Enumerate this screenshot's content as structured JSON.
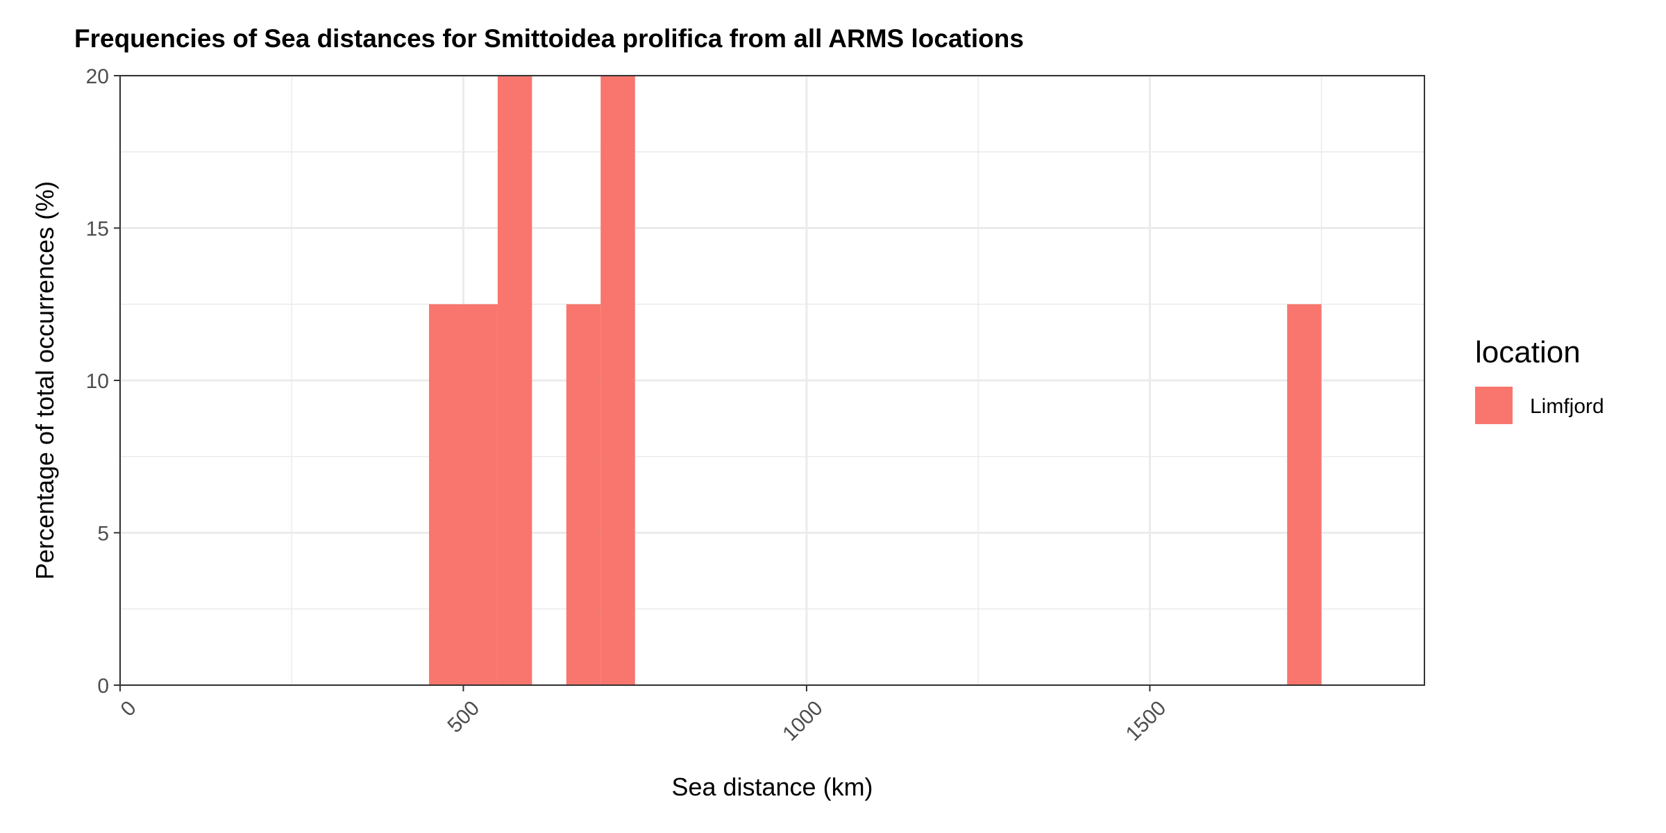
{
  "chart_data": {
    "type": "bar",
    "title": "Frequencies of Sea distances for Smittoidea prolifica from all ARMS locations",
    "xlabel": "Sea distance (km)",
    "ylabel": "Percentage of total occurrences (%)",
    "xlim": [
      0,
      1900
    ],
    "ylim": [
      0,
      20
    ],
    "x_ticks": [
      0,
      500,
      1000,
      1500
    ],
    "x_tick_labels": [
      "0",
      "500",
      "1000",
      "1500"
    ],
    "y_ticks": [
      0,
      5,
      10,
      15,
      20
    ],
    "y_tick_labels": [
      "0",
      "5",
      "10",
      "15",
      "20"
    ],
    "bin_width": 50,
    "grid": true,
    "legend": {
      "title": "location",
      "placement": "right",
      "entries": [
        {
          "label": "Limfjord",
          "color": "#F8766D"
        }
      ]
    },
    "series": [
      {
        "name": "Limfjord",
        "color": "#F8766D",
        "bins": [
          {
            "x_start": 450,
            "x_end": 500,
            "value": 12.5
          },
          {
            "x_start": 500,
            "x_end": 550,
            "value": 12.5
          },
          {
            "x_start": 550,
            "x_end": 600,
            "value": 20
          },
          {
            "x_start": 650,
            "x_end": 700,
            "value": 12.5
          },
          {
            "x_start": 700,
            "x_end": 750,
            "value": 20
          },
          {
            "x_start": 1700,
            "x_end": 1750,
            "value": 12.5
          }
        ]
      }
    ]
  }
}
